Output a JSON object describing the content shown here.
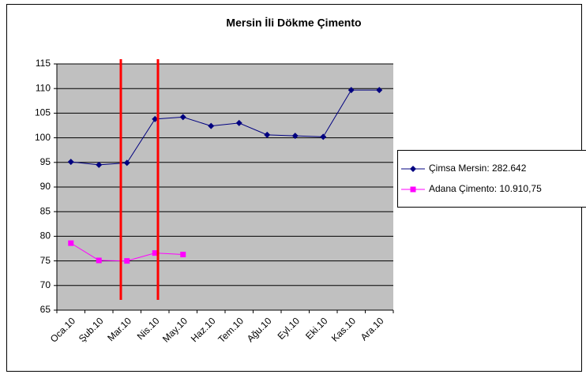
{
  "chart_data": {
    "type": "line",
    "title": "Mersin İli Dökme Çimento",
    "categories": [
      "Oca.10",
      "Şub.10",
      "Mar.10",
      "Nis.10",
      "May.10",
      "Haz.10",
      "Tem.10",
      "Ağu.10",
      "Eyl.10",
      "Eki.10",
      "Kas.10",
      "Ara.10"
    ],
    "series": [
      {
        "name": "Çimsa Mersin: 282.642",
        "color": "#000080",
        "values": [
          95.1,
          94.5,
          94.9,
          103.8,
          104.2,
          102.4,
          103.0,
          100.6,
          100.4,
          100.2,
          109.7,
          109.7
        ]
      },
      {
        "name": "Adana Çimento: 10.910,75",
        "color": "#ff00ff",
        "values": [
          78.6,
          75.1,
          75.0,
          76.6,
          76.3,
          null,
          null,
          null,
          null,
          null,
          null,
          null
        ]
      }
    ],
    "ylim": [
      65,
      115
    ],
    "yticks": [
      65,
      70,
      75,
      80,
      85,
      90,
      95,
      100,
      105,
      110,
      115
    ],
    "grid": true,
    "legend": "right"
  }
}
